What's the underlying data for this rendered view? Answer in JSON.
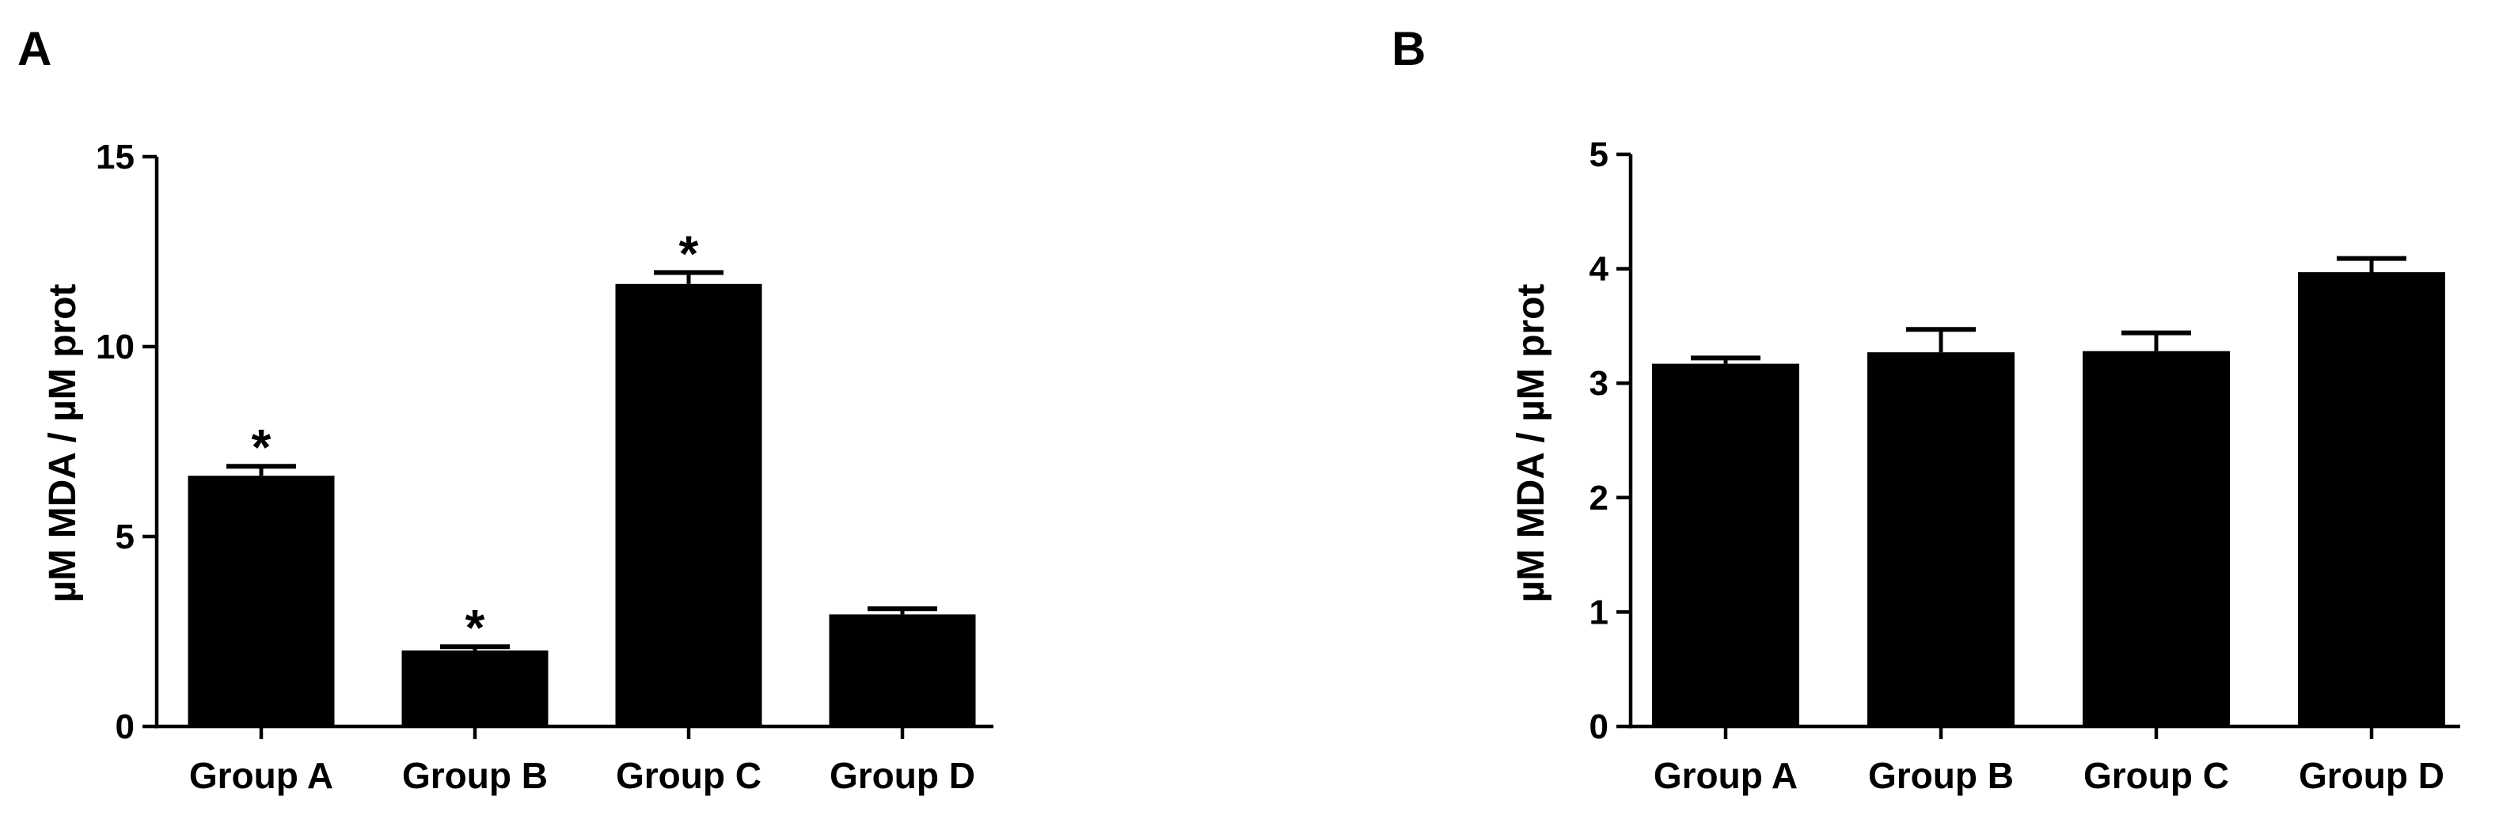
{
  "chart_data": [
    {
      "panel": "A",
      "type": "bar",
      "categories": [
        "Group A",
        "Group B",
        "Group C",
        "Group D"
      ],
      "values": [
        6.6,
        2.0,
        11.65,
        2.95
      ],
      "error": [
        0.25,
        0.1,
        0.3,
        0.15
      ],
      "significance": [
        "*",
        "*",
        "*",
        ""
      ],
      "ylabel": "µM MDA / µM prot",
      "ylim": [
        0,
        15
      ],
      "yticks": [
        0,
        5,
        10,
        15
      ],
      "bar_color": "#000000",
      "grid": false,
      "legend": "none"
    },
    {
      "panel": "B",
      "type": "bar",
      "categories": [
        "Group A",
        "Group B",
        "Group C",
        "Group D"
      ],
      "values": [
        3.17,
        3.27,
        3.28,
        3.97
      ],
      "error": [
        0.05,
        0.2,
        0.16,
        0.12
      ],
      "significance": [
        "",
        "",
        "",
        ""
      ],
      "ylabel": "µM MDA / µM prot",
      "ylim": [
        0,
        5
      ],
      "yticks": [
        0,
        1,
        2,
        3,
        4,
        5
      ],
      "bar_color": "#000000",
      "grid": false,
      "legend": "none"
    }
  ]
}
